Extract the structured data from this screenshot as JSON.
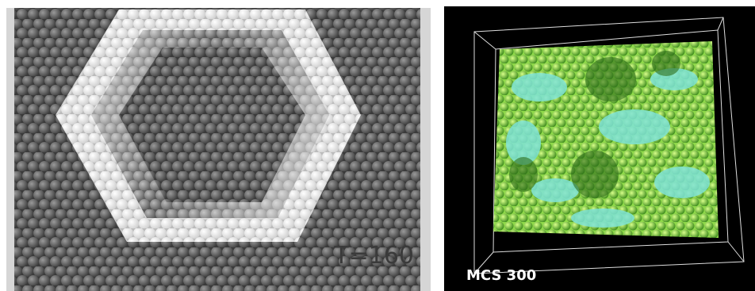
{
  "panels": [
    {
      "label": "T=160"
    },
    {
      "label": "MCS 300"
    }
  ]
}
